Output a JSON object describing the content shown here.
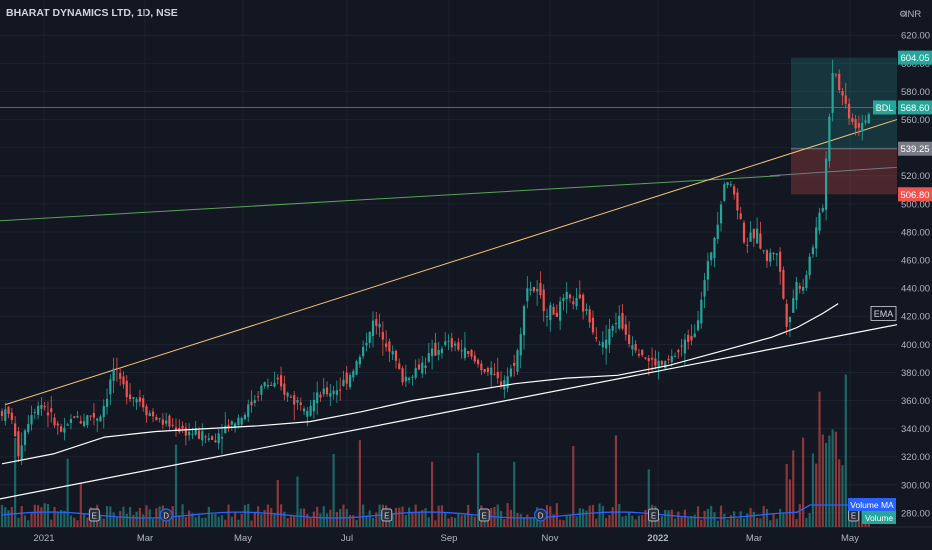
{
  "header": {
    "symbol_title": "BHARAT DYNAMICS LTD, 1D, NSE",
    "currency": "INR",
    "settings_icon": "gear-icon"
  },
  "colors": {
    "background": "#131722",
    "grid": "#1e2230",
    "axis_text": "#b2b5be",
    "up": "#26a69a",
    "down": "#ef5350",
    "trendline": "#f2c27a",
    "hline": "#2e7d5b",
    "green_line": "#5aa25a",
    "ema": "#ffffff",
    "volume_ma": "#2962ff"
  },
  "chart_data": {
    "type": "candlestick",
    "title": "BHARAT DYNAMICS LTD, 1D, NSE",
    "y_axis": {
      "ticks": [
        280,
        300,
        320,
        340,
        360,
        380,
        400,
        420,
        440,
        460,
        480,
        500,
        520,
        540,
        560,
        580,
        600,
        620
      ],
      "range": [
        270,
        628
      ]
    },
    "x_axis": {
      "ticks": [
        "2021",
        "Mar",
        "May",
        "Jul",
        "Sep",
        "Nov",
        "2022",
        "Mar",
        "May"
      ]
    },
    "price_labels": [
      {
        "label": "",
        "value": "604.05",
        "price": 604.05,
        "color": "#26a69a"
      },
      {
        "label": "BDL",
        "value": "568.60",
        "price": 568.6,
        "color": "#26a69a"
      },
      {
        "label": "",
        "value": "539.25",
        "price": 539.25,
        "color": "#787b86"
      },
      {
        "label": "",
        "value": "506.80",
        "price": 506.8,
        "color": "#ef5350"
      }
    ],
    "position_tool": {
      "target": 604.05,
      "entry": 539.25,
      "stop": 506.8
    },
    "indicator_labels": {
      "ema": "EMA",
      "volume_ma": "Volume MA",
      "volume": "Volume"
    },
    "event_markers": [
      {
        "type": "E",
        "month_index": 1.8
      },
      {
        "type": "D",
        "month_index": 3.2
      },
      {
        "type": "E",
        "month_index": 7.5
      },
      {
        "type": "E",
        "month_index": 9.4
      },
      {
        "type": "D",
        "month_index": 10.5
      },
      {
        "type": "E",
        "month_index": 12.7
      },
      {
        "type": "E",
        "month_index": 16.6
      },
      {
        "type": "D",
        "month_index": 16.9
      }
    ],
    "price_path": [
      [
        0.0,
        352
      ],
      [
        0.2,
        348
      ],
      [
        0.3,
        320
      ],
      [
        0.45,
        340
      ],
      [
        0.6,
        355
      ],
      [
        0.8,
        358
      ],
      [
        1.0,
        345
      ],
      [
        1.2,
        335
      ],
      [
        1.4,
        350
      ],
      [
        1.55,
        345
      ],
      [
        1.7,
        350
      ],
      [
        1.9,
        348
      ],
      [
        2.1,
        370
      ],
      [
        2.15,
        385
      ],
      [
        2.3,
        372
      ],
      [
        2.5,
        365
      ],
      [
        2.7,
        360
      ],
      [
        2.9,
        350
      ],
      [
        3.1,
        345
      ],
      [
        3.3,
        342
      ],
      [
        3.6,
        338
      ],
      [
        3.9,
        335
      ],
      [
        4.1,
        332
      ],
      [
        4.3,
        340
      ],
      [
        4.5,
        345
      ],
      [
        4.7,
        350
      ],
      [
        4.9,
        360
      ],
      [
        5.1,
        372
      ],
      [
        5.4,
        370
      ],
      [
        5.7,
        360
      ],
      [
        6.0,
        358
      ],
      [
        6.3,
        365
      ],
      [
        6.6,
        370
      ],
      [
        6.8,
        380
      ],
      [
        7.0,
        392
      ],
      [
        7.2,
        415
      ],
      [
        7.4,
        410
      ],
      [
        7.6,
        395
      ],
      [
        7.8,
        375
      ],
      [
        8.0,
        380
      ],
      [
        8.3,
        390
      ],
      [
        8.6,
        400
      ],
      [
        8.9,
        398
      ],
      [
        9.2,
        388
      ],
      [
        9.5,
        380
      ],
      [
        9.7,
        372
      ],
      [
        9.9,
        380
      ],
      [
        10.1,
        400
      ],
      [
        10.2,
        442
      ],
      [
        10.4,
        438
      ],
      [
        10.6,
        425
      ],
      [
        10.8,
        422
      ],
      [
        11.0,
        432
      ],
      [
        11.3,
        428
      ],
      [
        11.5,
        415
      ],
      [
        11.7,
        398
      ],
      [
        12.0,
        420
      ],
      [
        12.2,
        405
      ],
      [
        12.4,
        398
      ],
      [
        12.6,
        388
      ],
      [
        12.9,
        385
      ],
      [
        13.2,
        395
      ],
      [
        13.5,
        410
      ],
      [
        13.7,
        445
      ],
      [
        13.9,
        480
      ],
      [
        14.1,
        520
      ],
      [
        14.3,
        505
      ],
      [
        14.5,
        470
      ],
      [
        14.7,
        480
      ],
      [
        14.9,
        460
      ],
      [
        15.1,
        468
      ],
      [
        15.3,
        415
      ],
      [
        15.5,
        445
      ],
      [
        15.6,
        440
      ],
      [
        15.8,
        470
      ],
      [
        16.0,
        500
      ],
      [
        16.1,
        550
      ],
      [
        16.2,
        600
      ],
      [
        16.35,
        580
      ],
      [
        16.5,
        565
      ],
      [
        16.65,
        555
      ],
      [
        16.8,
        560
      ],
      [
        16.9,
        565
      ]
    ],
    "volume_bars": 170
  }
}
